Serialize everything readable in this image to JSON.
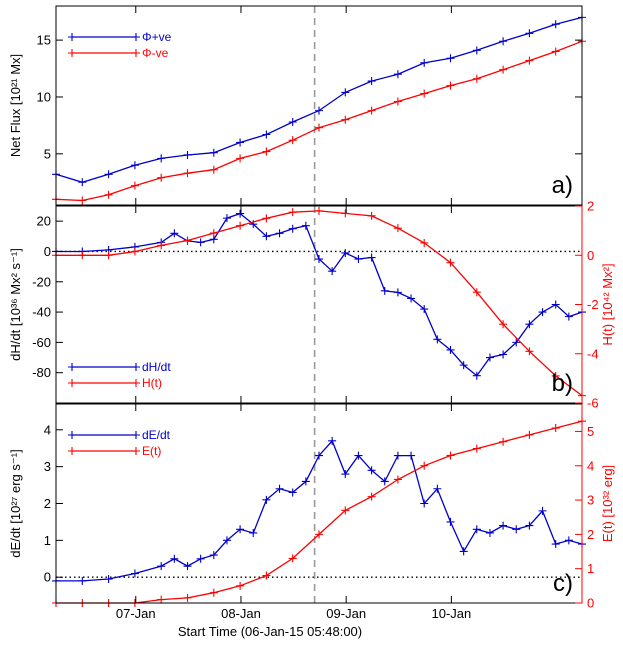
{
  "x_axis": {
    "label": "Start Time (06-Jan-15 05:48:00)",
    "range_hours": [
      0,
      120
    ],
    "ticks": [
      {
        "label": "07-Jan",
        "hours": 18.2
      },
      {
        "label": "08-Jan",
        "hours": 42.2
      },
      {
        "label": "09-Jan",
        "hours": 66.2
      },
      {
        "label": "10-Jan",
        "hours": 90.2
      }
    ]
  },
  "event_marker_hours": 59,
  "colors": {
    "blue": "#0000cc",
    "red": "#ff0000",
    "black": "#000000",
    "grey": "#9a9a9a"
  },
  "chart_data": [
    {
      "type": "line",
      "panel_label": "a)",
      "ylabel": "Net Flux [10²¹ Mx]",
      "ylim": [
        0.5,
        18
      ],
      "yticks": [
        5,
        10,
        15
      ],
      "legend_position": "top-left",
      "series": [
        {
          "name": "Φ+ve",
          "color": "#0000cc",
          "x": [
            0,
            6,
            12,
            18,
            24,
            30,
            36,
            42,
            48,
            54,
            60,
            66,
            72,
            78,
            84,
            90,
            96,
            102,
            108,
            114,
            120
          ],
          "y": [
            3.2,
            2.5,
            3.2,
            4.0,
            4.6,
            4.9,
            5.1,
            6.0,
            6.7,
            7.8,
            8.8,
            10.4,
            11.4,
            12.0,
            13.0,
            13.4,
            14.1,
            14.9,
            15.6,
            16.4,
            17.0
          ]
        },
        {
          "name": "Φ-ve",
          "color": "#ff0000",
          "x": [
            0,
            6,
            12,
            18,
            24,
            30,
            36,
            42,
            48,
            54,
            60,
            66,
            72,
            78,
            84,
            90,
            96,
            102,
            108,
            114,
            120
          ],
          "y": [
            1.0,
            0.9,
            1.4,
            2.2,
            2.9,
            3.3,
            3.6,
            4.6,
            5.2,
            6.2,
            7.3,
            8.0,
            8.8,
            9.6,
            10.3,
            11.0,
            11.6,
            12.4,
            13.2,
            14.0,
            14.9
          ]
        }
      ]
    },
    {
      "type": "line",
      "panel_label": "b)",
      "ylabel": "dH/dt [10³⁶ Mx² s⁻¹]",
      "ylabel_right": "H(t) [10⁴² Mx²]",
      "ylim": [
        -100,
        30
      ],
      "yticks": [
        -80,
        -60,
        -40,
        -20,
        0,
        20
      ],
      "ylim_right": [
        -6,
        2
      ],
      "yticks_right": [
        -6,
        -4,
        -2,
        0,
        2
      ],
      "legend_position": "bottom-left",
      "series": [
        {
          "name": "dH/dt",
          "color": "#0000cc",
          "axis": "left",
          "x": [
            0,
            6,
            12,
            18,
            24,
            27,
            30,
            33,
            36,
            39,
            42,
            45,
            48,
            51,
            54,
            57,
            60,
            63,
            66,
            69,
            72,
            75,
            78,
            81,
            84,
            87,
            90,
            93,
            96,
            99,
            102,
            105,
            108,
            111,
            114,
            117,
            120
          ],
          "y": [
            0,
            0,
            1,
            3,
            6,
            12,
            7,
            6,
            8,
            22,
            25,
            18,
            10,
            12,
            15,
            17,
            -5,
            -13,
            -1,
            -5,
            -4,
            -26,
            -27,
            -31,
            -38,
            -58,
            -65,
            -75,
            -82,
            -70,
            -68,
            -60,
            -48,
            -40,
            -35,
            -43,
            -40
          ]
        },
        {
          "name": "H(t)",
          "color": "#ff0000",
          "axis": "right",
          "x": [
            0,
            6,
            12,
            18,
            24,
            30,
            36,
            42,
            48,
            54,
            60,
            66,
            72,
            78,
            84,
            90,
            96,
            102,
            108,
            114,
            120
          ],
          "y": [
            0,
            0,
            0,
            0.15,
            0.4,
            0.6,
            0.9,
            1.2,
            1.5,
            1.75,
            1.8,
            1.7,
            1.6,
            1.1,
            0.5,
            -0.3,
            -1.5,
            -2.8,
            -3.9,
            -4.9,
            -5.7
          ]
        }
      ]
    },
    {
      "type": "line",
      "panel_label": "c)",
      "ylabel": "dE/dt [10²⁷ erg s⁻¹]",
      "ylabel_right": "E(t) [10³² erg]",
      "ylim": [
        -0.7,
        4.7
      ],
      "yticks": [
        0,
        1,
        2,
        3,
        4
      ],
      "ylim_right": [
        0,
        5.8
      ],
      "yticks_right": [
        0,
        1,
        2,
        3,
        4,
        5
      ],
      "legend_position": "top-left",
      "series": [
        {
          "name": "dE/dt",
          "color": "#0000cc",
          "axis": "left",
          "x": [
            0,
            6,
            12,
            18,
            24,
            27,
            30,
            33,
            36,
            39,
            42,
            45,
            48,
            51,
            54,
            57,
            60,
            63,
            66,
            69,
            72,
            75,
            78,
            81,
            84,
            87,
            90,
            93,
            96,
            99,
            102,
            105,
            108,
            111,
            114,
            117,
            120
          ],
          "y": [
            -0.1,
            -0.1,
            -0.05,
            0.1,
            0.3,
            0.5,
            0.3,
            0.5,
            0.6,
            1.0,
            1.3,
            1.2,
            2.1,
            2.4,
            2.3,
            2.6,
            3.3,
            3.7,
            2.8,
            3.3,
            2.9,
            2.6,
            3.3,
            3.3,
            2.0,
            2.4,
            1.5,
            0.7,
            1.3,
            1.2,
            1.4,
            1.3,
            1.4,
            1.8,
            0.9,
            1.0,
            0.9
          ]
        },
        {
          "name": "E(t)",
          "color": "#ff0000",
          "axis": "right",
          "x": [
            0,
            6,
            12,
            18,
            24,
            30,
            36,
            42,
            48,
            54,
            60,
            66,
            72,
            78,
            84,
            90,
            96,
            102,
            108,
            114,
            120
          ],
          "y": [
            0,
            0,
            0,
            0,
            0.1,
            0.15,
            0.3,
            0.5,
            0.8,
            1.3,
            2.0,
            2.7,
            3.1,
            3.6,
            4.0,
            4.3,
            4.5,
            4.7,
            4.9,
            5.1,
            5.3
          ]
        }
      ]
    }
  ]
}
